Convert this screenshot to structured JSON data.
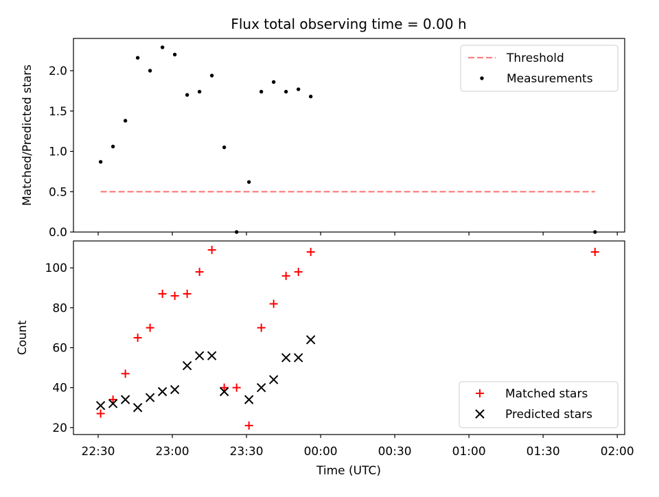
{
  "chart_data": [
    {
      "type": "scatter",
      "title": "Flux total observing time = 0.00 h",
      "xlabel": "",
      "ylabel": "Matched/Predicted stars",
      "ylim": [
        0,
        2.4
      ],
      "yticks": [
        0.0,
        0.5,
        1.0,
        1.5,
        2.0
      ],
      "ytick_labels": [
        "0.0",
        "0.5",
        "1.0",
        "1.5",
        "2.0"
      ],
      "legend": {
        "placement": "top-right",
        "entries": [
          "Threshold",
          "Measurements"
        ]
      },
      "threshold": {
        "name": "Threshold",
        "value": 0.5,
        "x_start": "22:31",
        "x_end": "01:51",
        "color": "#ff7f7f"
      },
      "series": [
        {
          "name": "Measurements",
          "color": "#000000",
          "points": [
            {
              "x": "22:31",
              "y": 0.87
            },
            {
              "x": "22:36",
              "y": 1.06
            },
            {
              "x": "22:41",
              "y": 1.38
            },
            {
              "x": "22:46",
              "y": 2.16
            },
            {
              "x": "22:51",
              "y": 2.0
            },
            {
              "x": "22:56",
              "y": 2.29
            },
            {
              "x": "23:01",
              "y": 2.2
            },
            {
              "x": "23:06",
              "y": 1.7
            },
            {
              "x": "23:11",
              "y": 1.74
            },
            {
              "x": "23:16",
              "y": 1.94
            },
            {
              "x": "23:21",
              "y": 1.05
            },
            {
              "x": "23:26",
              "y": 0.0
            },
            {
              "x": "23:31",
              "y": 0.62
            },
            {
              "x": "23:36",
              "y": 1.74
            },
            {
              "x": "23:41",
              "y": 1.86
            },
            {
              "x": "23:46",
              "y": 1.74
            },
            {
              "x": "23:51",
              "y": 1.77
            },
            {
              "x": "23:56",
              "y": 1.68
            },
            {
              "x": "01:51",
              "y": 0.0
            }
          ]
        }
      ]
    },
    {
      "type": "scatter",
      "title": "",
      "xlabel": "Time (UTC)",
      "ylabel": "Count",
      "ylim": [
        16.5,
        113.5
      ],
      "yticks": [
        20,
        40,
        60,
        80,
        100
      ],
      "ytick_labels": [
        "20",
        "40",
        "60",
        "80",
        "100"
      ],
      "xlim": [
        "22:20",
        "02:03"
      ],
      "xticks": [
        "22:30",
        "23:00",
        "23:30",
        "00:00",
        "00:30",
        "01:00",
        "01:30",
        "02:00"
      ],
      "legend": {
        "placement": "bottom-right",
        "entries": [
          "Matched stars",
          "Predicted stars"
        ]
      },
      "series": [
        {
          "name": "Matched stars",
          "marker": "+",
          "color": "#ff0000",
          "points": [
            {
              "x": "22:31",
              "y": 27
            },
            {
              "x": "22:36",
              "y": 34
            },
            {
              "x": "22:41",
              "y": 47
            },
            {
              "x": "22:46",
              "y": 65
            },
            {
              "x": "22:51",
              "y": 70
            },
            {
              "x": "22:56",
              "y": 87
            },
            {
              "x": "23:01",
              "y": 86
            },
            {
              "x": "23:06",
              "y": 87
            },
            {
              "x": "23:11",
              "y": 98
            },
            {
              "x": "23:16",
              "y": 109
            },
            {
              "x": "23:21",
              "y": 40
            },
            {
              "x": "23:26",
              "y": 40
            },
            {
              "x": "23:31",
              "y": 21
            },
            {
              "x": "23:36",
              "y": 70
            },
            {
              "x": "23:41",
              "y": 82
            },
            {
              "x": "23:46",
              "y": 96
            },
            {
              "x": "23:51",
              "y": 98
            },
            {
              "x": "23:56",
              "y": 108
            },
            {
              "x": "01:51",
              "y": 108
            }
          ]
        },
        {
          "name": "Predicted stars",
          "marker": "x",
          "color": "#000000",
          "points": [
            {
              "x": "22:31",
              "y": 31
            },
            {
              "x": "22:36",
              "y": 32
            },
            {
              "x": "22:41",
              "y": 34
            },
            {
              "x": "22:46",
              "y": 30
            },
            {
              "x": "22:51",
              "y": 35
            },
            {
              "x": "22:56",
              "y": 38
            },
            {
              "x": "23:01",
              "y": 39
            },
            {
              "x": "23:06",
              "y": 51
            },
            {
              "x": "23:11",
              "y": 56
            },
            {
              "x": "23:16",
              "y": 56
            },
            {
              "x": "23:21",
              "y": 38
            },
            {
              "x": "23:31",
              "y": 34
            },
            {
              "x": "23:36",
              "y": 40
            },
            {
              "x": "23:41",
              "y": 44
            },
            {
              "x": "23:46",
              "y": 55
            },
            {
              "x": "23:51",
              "y": 55
            },
            {
              "x": "23:56",
              "y": 64
            }
          ]
        }
      ]
    }
  ]
}
